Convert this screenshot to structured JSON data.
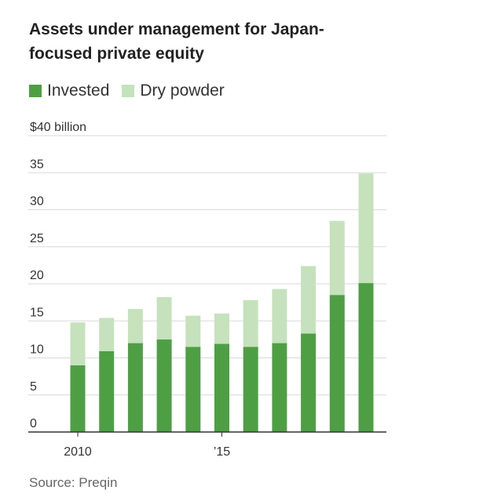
{
  "title": "Assets under management for Japan-focused private equity",
  "legend": [
    {
      "label": "Invested",
      "color": "#4e9f44"
    },
    {
      "label": "Dry powder",
      "color": "#c5e2bc"
    }
  ],
  "source": "Source: Preqin",
  "chart_data": {
    "type": "bar",
    "stacked": true,
    "categories": [
      "2010",
      "2011",
      "2012",
      "2013",
      "2014",
      "2015",
      "2016",
      "2017",
      "2018",
      "2019",
      "2020"
    ],
    "series": [
      {
        "name": "Invested",
        "color": "#4e9f44",
        "values": [
          9.0,
          10.9,
          12.0,
          12.5,
          11.5,
          11.9,
          11.5,
          12.0,
          13.3,
          18.5,
          20.1
        ]
      },
      {
        "name": "Dry powder",
        "color": "#c5e2bc",
        "values": [
          5.8,
          4.5,
          4.6,
          5.7,
          4.2,
          4.1,
          6.3,
          7.3,
          9.1,
          10.0,
          14.8
        ]
      }
    ],
    "ylim": [
      0,
      40
    ],
    "yticks": [
      {
        "value": 0,
        "label": "0"
      },
      {
        "value": 5,
        "label": "5"
      },
      {
        "value": 10,
        "label": "10"
      },
      {
        "value": 15,
        "label": "15"
      },
      {
        "value": 20,
        "label": "20"
      },
      {
        "value": 25,
        "label": "25"
      },
      {
        "value": 30,
        "label": "30"
      },
      {
        "value": 35,
        "label": "35"
      },
      {
        "value": 40,
        "label": "$40 billion"
      }
    ],
    "xticks": [
      {
        "category": "2010",
        "label": "2010"
      },
      {
        "category": "2015",
        "label": "’15"
      }
    ],
    "grid": true
  }
}
